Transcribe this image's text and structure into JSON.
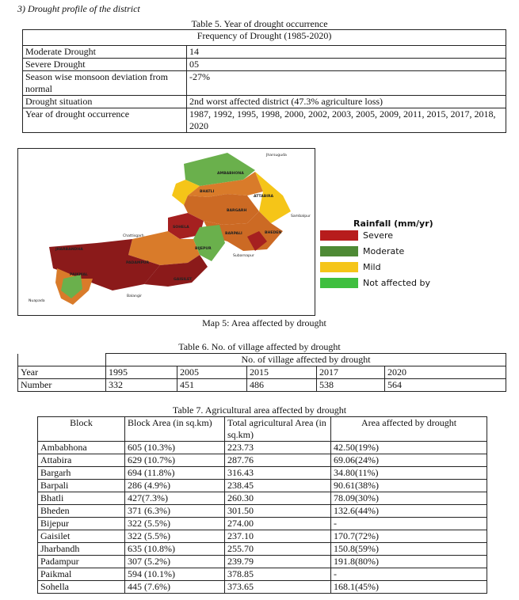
{
  "heading": "3)   Drought profile of the district",
  "table5": {
    "caption": "Table 5. Year of drought occurrence",
    "header": "Frequency of Drought (1985-2020)",
    "rows": [
      [
        "Moderate Drought",
        "14"
      ],
      [
        "Severe Drought",
        "05"
      ],
      [
        "Season wise monsoon deviation from normal",
        "-27%"
      ],
      [
        "Drought situation",
        "2nd worst affected district (47.3% agriculture loss)"
      ],
      [
        "Year of drought occurrence",
        "1987, 1992, 1995, 1998, 2000, 2002, 2003, 2005, 2009, 2011, 2015, 2017, 2018, 2020"
      ]
    ]
  },
  "map": {
    "labels": [
      "Jharsuguda",
      "AMBABHONA",
      "ATTABIRA",
      "BHATLI",
      "BARGARH",
      "Sambalpur",
      "SOHELA",
      "BARPALI",
      "BHEDEN",
      "Chattisgarh",
      "BIJEPUR",
      "Subarnapur",
      "JHARBANDHA",
      "PADAMPUR",
      "PAIKMAL",
      "GAISILET",
      "Balangir",
      "Nuapada"
    ],
    "legend": {
      "title": "Rainfall (mm/yr)",
      "items": [
        "Severe",
        "Moderate",
        "Mild",
        "Not affected by"
      ]
    },
    "caption": "Map 5: Area affected by drought"
  },
  "table6": {
    "caption": "Table 6. No. of village affected by drought",
    "header": "No. of village affected by drought",
    "rows": [
      [
        "Year",
        "1995",
        "2005",
        "2015",
        "2017",
        "2020"
      ],
      [
        "Number",
        "332",
        "451",
        "486",
        "538",
        "564"
      ]
    ]
  },
  "table7": {
    "caption": "Table 7. Agricultural area affected by drought",
    "columns": [
      "Block",
      "Block Area (in sq.km)",
      "Total agricultural Area (in sq.km)",
      "Area affected by drought"
    ],
    "rows": [
      [
        "Ambabhona",
        "605 (10.3%)",
        "223.73",
        "42.50(19%)"
      ],
      [
        "Attabira",
        "629 (10.7%)",
        "287.76",
        "69.06(24%)"
      ],
      [
        "Bargarh",
        "694 (11.8%)",
        "316.43",
        "34.80(11%)"
      ],
      [
        "Barpali",
        "286 (4.9%)",
        "238.45",
        "90.61(38%)"
      ],
      [
        "Bhatli",
        "427(7.3%)",
        "260.30",
        "78.09(30%)"
      ],
      [
        "Bheden",
        "371 (6.3%)",
        "301.50",
        "132.6(44%)"
      ],
      [
        "Bijepur",
        "322 (5.5%)",
        "274.00",
        "-"
      ],
      [
        "Gaisilet",
        "322 (5.5%)",
        "237.10",
        "170.7(72%)"
      ],
      [
        "Jharbandh",
        "635 (10.8%)",
        "255.70",
        "150.8(59%)"
      ],
      [
        "Padampur",
        "307 (5.2%)",
        "239.79",
        "191.8(80%)"
      ],
      [
        "Paikmal",
        "594 (10.1%)",
        "378.85",
        "-"
      ],
      [
        "Sohella",
        "445 (7.6%)",
        "373.65",
        "168.1(45%)"
      ]
    ]
  }
}
